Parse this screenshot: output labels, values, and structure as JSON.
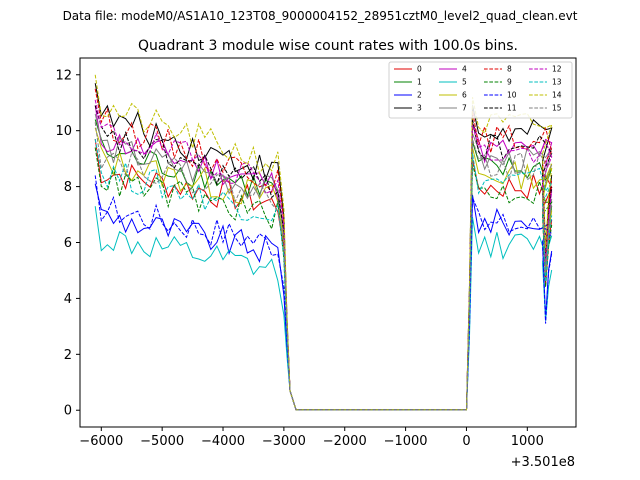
{
  "figure": {
    "suptitle": "Data file: modeM0/AS1A10_123T08_9000004152_28951cztM0_level2_quad_clean.evt"
  },
  "chart_data": {
    "type": "line",
    "title": "Quadrant 3 module wise count rates with 100.0s bins.",
    "xlabel": "",
    "ylabel": "",
    "x_offset_label": "+3.501e8",
    "xlim": [
      -6350,
      1800
    ],
    "ylim": [
      -0.6,
      12.6
    ],
    "x_ticks": [
      -6000,
      -5000,
      -4000,
      -3000,
      -2000,
      -1000,
      0,
      1000
    ],
    "x_tick_labels": [
      "−6000",
      "−5000",
      "−4000",
      "−3000",
      "−2000",
      "−1000",
      "0",
      "1000"
    ],
    "y_ticks": [
      0,
      2,
      4,
      6,
      8,
      10,
      12
    ],
    "y_tick_labels": [
      "0",
      "2",
      "4",
      "6",
      "8",
      "10",
      "12"
    ],
    "grid": false,
    "legend_position": "top-right",
    "segment_a": {
      "x_start": -6100,
      "step": 100,
      "count": 32
    },
    "segment_b": {
      "x_start": -2900,
      "step": 100,
      "count": 30
    },
    "segment_c": {
      "x_start": 100,
      "step": 100,
      "count": 14
    },
    "series": [
      {
        "name": "0",
        "color": "#e00000",
        "dash": "solid",
        "level_a": 8.6,
        "end_a": 7.3,
        "level_c": 8.0,
        "dip": 4.5
      },
      {
        "name": "1",
        "color": "#008000",
        "dash": "solid",
        "level_a": 9.3,
        "end_a": 7.8,
        "level_c": 8.6,
        "dip": 5.0
      },
      {
        "name": "2",
        "color": "#0000ff",
        "dash": "solid",
        "level_a": 7.0,
        "end_a": 5.6,
        "level_c": 6.7,
        "dip": 3.3
      },
      {
        "name": "3",
        "color": "#000000",
        "dash": "solid",
        "level_a": 10.6,
        "end_a": 8.4,
        "level_c": 9.9,
        "dip": 5.6
      },
      {
        "name": "4",
        "color": "#bf00bf",
        "dash": "solid",
        "level_a": 9.8,
        "end_a": 8.0,
        "level_c": 9.3,
        "dip": 5.2
      },
      {
        "name": "5",
        "color": "#00bfbf",
        "dash": "solid",
        "level_a": 6.2,
        "end_a": 4.9,
        "level_c": 5.9,
        "dip": 3.2
      },
      {
        "name": "6",
        "color": "#bfbf00",
        "dash": "solid",
        "level_a": 9.0,
        "end_a": 7.5,
        "level_c": 8.4,
        "dip": 4.8
      },
      {
        "name": "7",
        "color": "#808080",
        "dash": "solid",
        "level_a": 9.5,
        "end_a": 7.7,
        "level_c": 8.9,
        "dip": 5.0
      },
      {
        "name": "8",
        "color": "#e00000",
        "dash": "dashed",
        "level_a": 10.4,
        "end_a": 8.2,
        "level_c": 9.7,
        "dip": 5.4
      },
      {
        "name": "9",
        "color": "#008000",
        "dash": "dashed",
        "level_a": 8.3,
        "end_a": 6.9,
        "level_c": 7.8,
        "dip": 4.4
      },
      {
        "name": "10",
        "color": "#0000ff",
        "dash": "dashed",
        "level_a": 7.3,
        "end_a": 5.9,
        "level_c": 6.6,
        "dip": 3.1
      },
      {
        "name": "11",
        "color": "#000000",
        "dash": "dashed",
        "level_a": 9.8,
        "end_a": 7.9,
        "level_c": 9.4,
        "dip": 5.3
      },
      {
        "name": "12",
        "color": "#bf00bf",
        "dash": "dashed",
        "level_a": 10.0,
        "end_a": 8.1,
        "level_c": 9.2,
        "dip": 5.2
      },
      {
        "name": "13",
        "color": "#00bfbf",
        "dash": "dashed",
        "level_a": 8.6,
        "end_a": 7.0,
        "level_c": 8.2,
        "dip": 4.6
      },
      {
        "name": "14",
        "color": "#bfbf00",
        "dash": "dashed",
        "level_a": 10.9,
        "end_a": 8.7,
        "level_c": 10.2,
        "dip": 5.8
      },
      {
        "name": "15",
        "color": "#808080",
        "dash": "dashed",
        "level_a": 9.2,
        "end_a": 7.5,
        "level_c": 8.7,
        "dip": 4.9
      }
    ]
  }
}
